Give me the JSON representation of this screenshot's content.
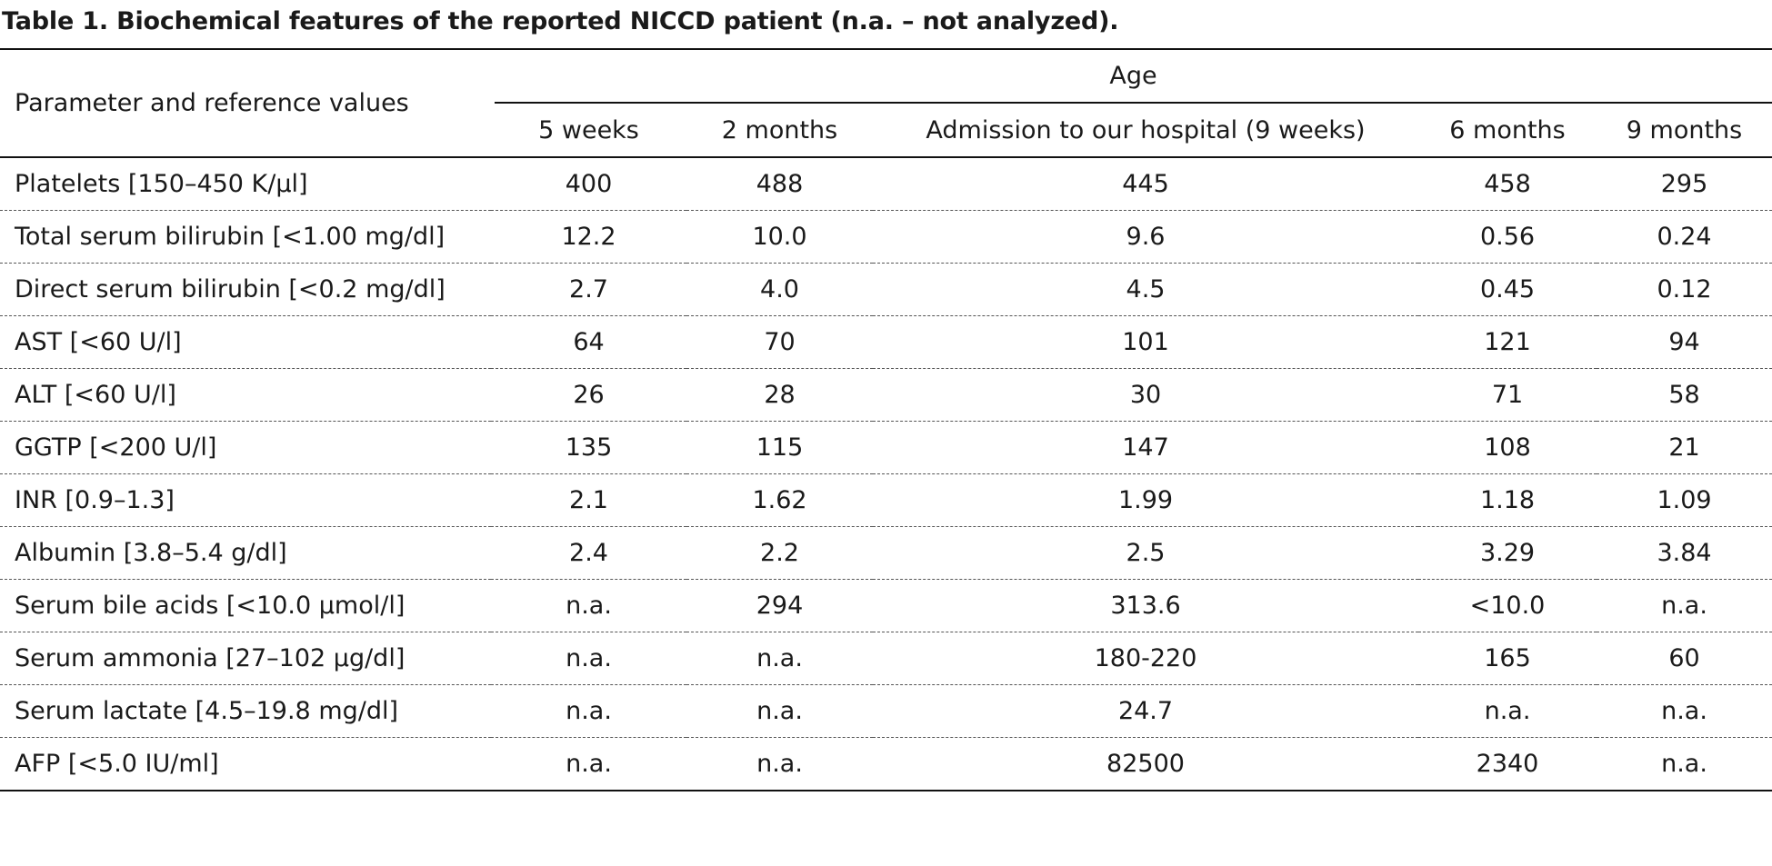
{
  "caption": "Table 1. Biochemical features of the reported NICCD patient (n.a. – not analyzed).",
  "table": {
    "param_header": "Parameter and reference values",
    "group_header": "Age",
    "columns": [
      "5 weeks",
      "2 months",
      "Admission to our hospital (9 weeks)",
      "6 months",
      "9 months"
    ],
    "rows": [
      {
        "param": "Platelets [150–450 K/µl]",
        "values": [
          "400",
          "488",
          "445",
          "458",
          "295"
        ]
      },
      {
        "param": "Total serum bilirubin [<1.00 mg/dl]",
        "values": [
          "12.2",
          "10.0",
          "9.6",
          "0.56",
          "0.24"
        ]
      },
      {
        "param": "Direct serum bilirubin [<0.2 mg/dl]",
        "values": [
          "2.7",
          "4.0",
          "4.5",
          "0.45",
          "0.12"
        ]
      },
      {
        "param": "AST [<60 U/l]",
        "values": [
          "64",
          "70",
          "101",
          "121",
          "94"
        ]
      },
      {
        "param": "ALT [<60 U/l]",
        "values": [
          "26",
          "28",
          "30",
          "71",
          "58"
        ]
      },
      {
        "param": "GGTP [<200 U/l]",
        "values": [
          "135",
          "115",
          "147",
          "108",
          "21"
        ]
      },
      {
        "param": "INR [0.9–1.3]",
        "values": [
          "2.1",
          "1.62",
          "1.99",
          "1.18",
          "1.09"
        ]
      },
      {
        "param": "Albumin [3.8–5.4 g/dl]",
        "values": [
          "2.4",
          "2.2",
          "2.5",
          "3.29",
          "3.84"
        ]
      },
      {
        "param": "Serum bile acids [<10.0 µmol/l]",
        "values": [
          "n.a.",
          "294",
          "313.6",
          "<10.0",
          "n.a."
        ]
      },
      {
        "param": "Serum ammonia  [27–102 µg/dl]",
        "values": [
          "n.a.",
          "n.a.",
          "180-220",
          "165",
          "60"
        ]
      },
      {
        "param": "Serum lactate [4.5–19.8 mg/dl]",
        "values": [
          "n.a.",
          "n.a.",
          "24.7",
          "n.a.",
          "n.a."
        ]
      },
      {
        "param": "AFP [<5.0 IU/ml]",
        "values": [
          "n.a.",
          "n.a.",
          "82500",
          "2340",
          "n.a."
        ]
      }
    ]
  }
}
